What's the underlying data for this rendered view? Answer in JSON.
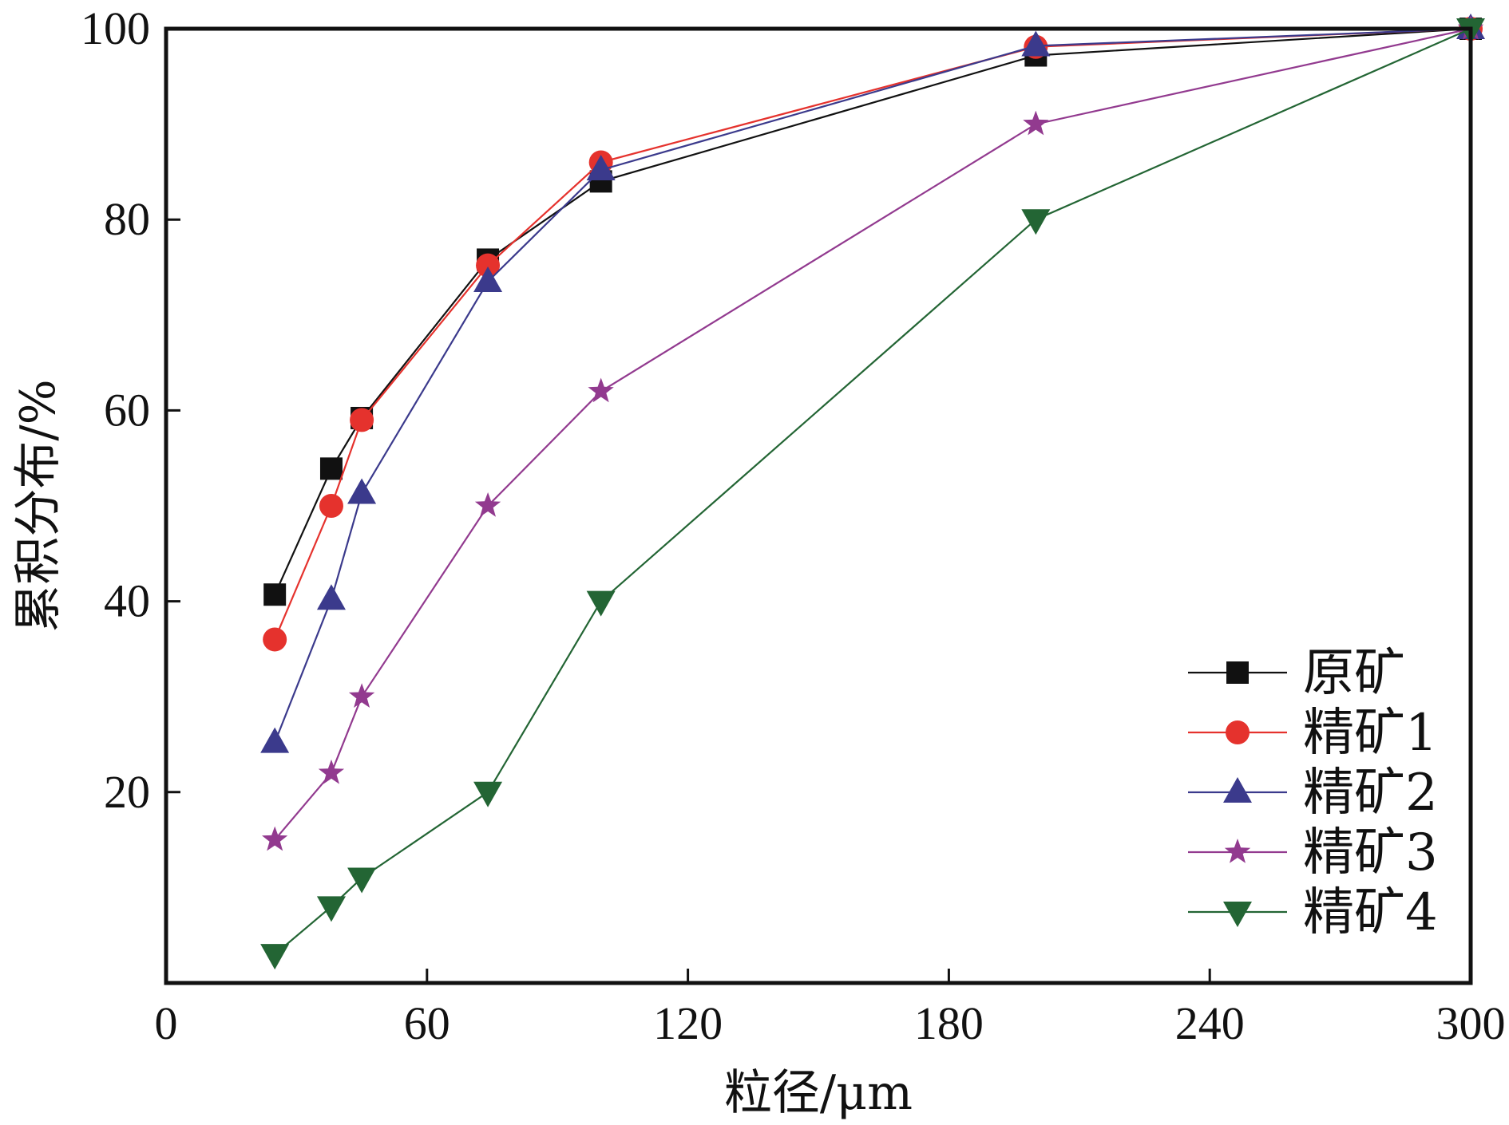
{
  "chart_data": {
    "type": "line",
    "title": "",
    "xlabel": "粒径/μm",
    "ylabel": "累积分布/%",
    "xlim": [
      0,
      300
    ],
    "ylim": [
      0,
      100
    ],
    "xticks": [
      0,
      60,
      120,
      180,
      240,
      300
    ],
    "yticks": [
      20,
      40,
      60,
      80,
      100
    ],
    "grid": false,
    "legend_position": "bottom-right",
    "x": [
      25,
      38,
      45,
      74,
      100,
      200,
      300
    ],
    "series": [
      {
        "name": "原矿",
        "marker": "square",
        "color": "#111111",
        "values": [
          40.7,
          53.9,
          59.2,
          75.8,
          84.0,
          97.2,
          100
        ]
      },
      {
        "name": "精矿1",
        "marker": "circle",
        "color": "#e5322d",
        "values": [
          36.0,
          50.0,
          59.0,
          75.2,
          86.0,
          98.1,
          100
        ]
      },
      {
        "name": "精矿2",
        "marker": "triangle-up",
        "color": "#3b3a8c",
        "values": [
          25.2,
          40.2,
          51.3,
          73.5,
          85.2,
          98.2,
          100
        ]
      },
      {
        "name": "精矿3",
        "marker": "star",
        "color": "#923a8f",
        "values": [
          15.0,
          22.0,
          30.0,
          50.0,
          62.0,
          90.0,
          100
        ]
      },
      {
        "name": "精矿4",
        "marker": "triangle-down",
        "color": "#236534",
        "values": [
          3.0,
          8.0,
          11.0,
          20.0,
          40.0,
          80.0,
          100
        ]
      }
    ]
  }
}
